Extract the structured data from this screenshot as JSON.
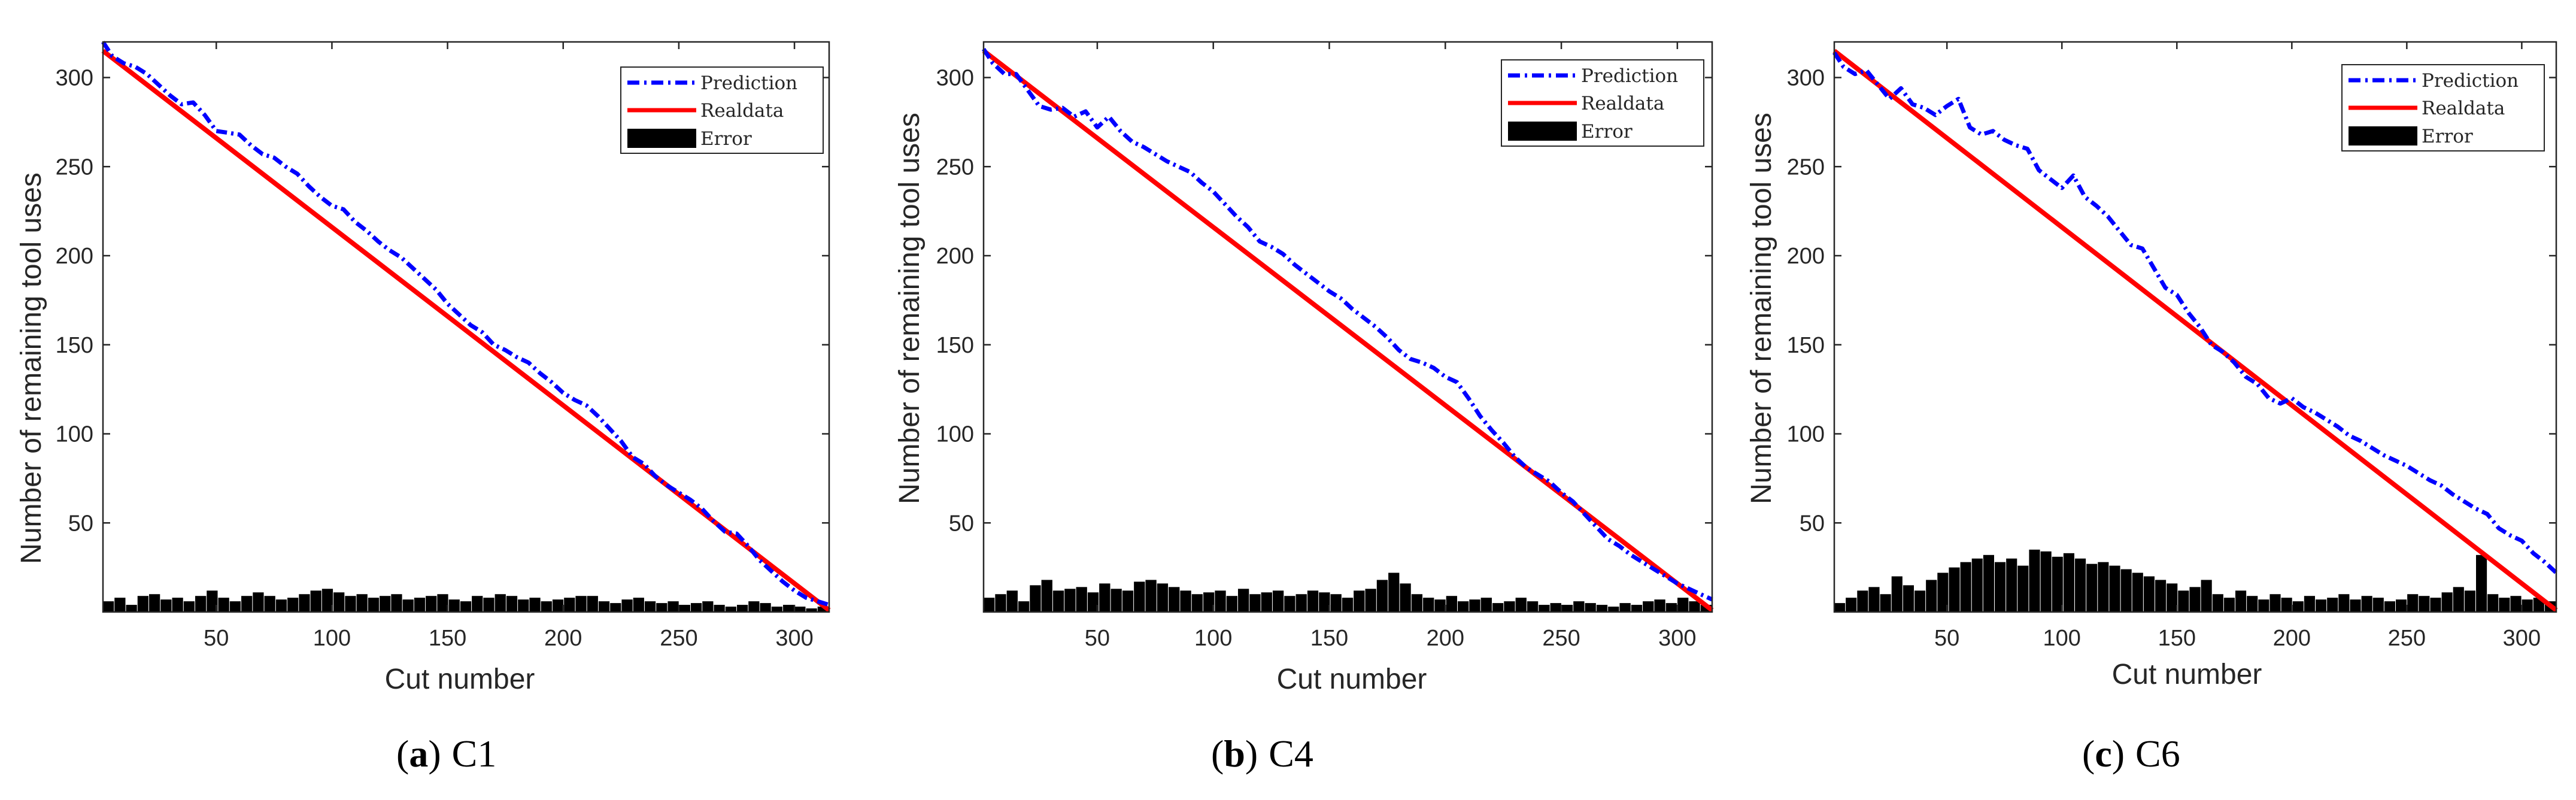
{
  "figure_captions": [
    {
      "letter": "a",
      "name": "C1"
    },
    {
      "letter": "b",
      "name": "C4"
    },
    {
      "letter": "c",
      "name": "C6"
    }
  ],
  "colors": {
    "prediction": "#0000ff",
    "realdata": "#ff0000",
    "error": "#000000",
    "axis": "#262626"
  },
  "chart_data": [
    {
      "id": "C1",
      "type": "line",
      "xlabel": "Cut number",
      "ylabel": "Number of remaining tool uses",
      "xlim": [
        1,
        315
      ],
      "ylim": [
        0,
        320
      ],
      "xticks": [
        50,
        100,
        150,
        200,
        250,
        300
      ],
      "yticks": [
        50,
        100,
        150,
        200,
        250,
        300
      ],
      "legend_location": "top-right",
      "series": [
        {
          "name": "Prediction",
          "style": "dash-dot",
          "x": [
            1,
            5,
            10,
            15,
            20,
            25,
            30,
            35,
            40,
            45,
            50,
            55,
            60,
            65,
            70,
            75,
            80,
            85,
            90,
            95,
            100,
            105,
            110,
            115,
            120,
            125,
            130,
            135,
            140,
            145,
            150,
            155,
            160,
            165,
            170,
            175,
            180,
            185,
            190,
            195,
            200,
            205,
            210,
            215,
            220,
            225,
            230,
            235,
            240,
            245,
            250,
            255,
            260,
            265,
            270,
            275,
            280,
            285,
            290,
            295,
            300,
            305,
            310,
            315
          ],
          "values": [
            320,
            312,
            308,
            306,
            302,
            296,
            290,
            285,
            286,
            279,
            270,
            269,
            268,
            262,
            257,
            255,
            250,
            246,
            239,
            233,
            228,
            226,
            219,
            214,
            208,
            203,
            199,
            193,
            187,
            181,
            173,
            167,
            161,
            157,
            150,
            147,
            143,
            140,
            134,
            129,
            123,
            119,
            116,
            110,
            103,
            96,
            87,
            83,
            76,
            71,
            67,
            63,
            58,
            51,
            45,
            44,
            37,
            29,
            23,
            17,
            12,
            8,
            6,
            4
          ]
        },
        {
          "name": "Realdata",
          "style": "solid",
          "x": [
            1,
            315
          ],
          "values": [
            315,
            1
          ]
        },
        {
          "name": "Error",
          "style": "bar",
          "x_start": 1,
          "x_end": 315,
          "values": [
            6,
            8,
            4,
            9,
            10,
            7,
            8,
            6,
            9,
            12,
            8,
            6,
            9,
            11,
            9,
            7,
            8,
            10,
            12,
            13,
            11,
            9,
            10,
            8,
            9,
            10,
            7,
            8,
            9,
            10,
            7,
            6,
            9,
            8,
            10,
            9,
            7,
            8,
            6,
            7,
            8,
            9,
            9,
            6,
            5,
            7,
            8,
            6,
            5,
            6,
            4,
            5,
            6,
            4,
            3,
            4,
            6,
            5,
            3,
            4,
            3,
            2,
            3
          ]
        }
      ]
    },
    {
      "id": "C4",
      "type": "line",
      "xlabel": "Cut number",
      "ylabel": "Number of remaining tool uses",
      "xlim": [
        1,
        315
      ],
      "ylim": [
        0,
        320
      ],
      "xticks": [
        50,
        100,
        150,
        200,
        250,
        300
      ],
      "yticks": [
        50,
        100,
        150,
        200,
        250,
        300
      ],
      "legend_location": "top-right",
      "series": [
        {
          "name": "Prediction",
          "style": "dash-dot",
          "x": [
            1,
            5,
            10,
            15,
            20,
            25,
            30,
            35,
            40,
            45,
            50,
            55,
            60,
            65,
            70,
            75,
            80,
            85,
            90,
            95,
            100,
            105,
            110,
            115,
            120,
            125,
            130,
            135,
            140,
            145,
            150,
            155,
            160,
            165,
            170,
            175,
            180,
            185,
            190,
            195,
            200,
            205,
            210,
            215,
            220,
            225,
            230,
            235,
            240,
            245,
            250,
            255,
            260,
            265,
            270,
            275,
            280,
            285,
            290,
            295,
            300,
            305,
            310,
            315
          ],
          "values": [
            316,
            308,
            302,
            302,
            293,
            284,
            282,
            283,
            278,
            281,
            272,
            278,
            270,
            264,
            261,
            257,
            253,
            250,
            247,
            241,
            236,
            229,
            222,
            216,
            208,
            205,
            201,
            195,
            190,
            185,
            180,
            176,
            170,
            165,
            160,
            154,
            147,
            142,
            140,
            137,
            132,
            129,
            120,
            110,
            102,
            95,
            87,
            81,
            77,
            73,
            67,
            62,
            55,
            48,
            41,
            37,
            32,
            28,
            24,
            20,
            16,
            13,
            10,
            7
          ]
        },
        {
          "name": "Realdata",
          "style": "solid",
          "x": [
            1,
            315
          ],
          "values": [
            315,
            1
          ]
        },
        {
          "name": "Error",
          "style": "bar",
          "x_start": 1,
          "x_end": 315,
          "values": [
            8,
            10,
            12,
            6,
            15,
            18,
            12,
            13,
            14,
            11,
            16,
            13,
            12,
            17,
            18,
            16,
            14,
            12,
            10,
            11,
            12,
            9,
            13,
            10,
            11,
            12,
            9,
            10,
            12,
            11,
            10,
            8,
            12,
            13,
            18,
            22,
            16,
            10,
            8,
            7,
            9,
            6,
            7,
            8,
            5,
            6,
            8,
            6,
            4,
            5,
            4,
            6,
            5,
            4,
            3,
            5,
            4,
            6,
            7,
            5,
            8,
            6,
            4
          ]
        }
      ]
    },
    {
      "id": "C6",
      "type": "line",
      "xlabel": "Cut number",
      "ylabel": "Number of remaining tool uses",
      "xlim": [
        1,
        315
      ],
      "ylim": [
        0,
        320
      ],
      "xticks": [
        50,
        100,
        150,
        200,
        250,
        300
      ],
      "yticks": [
        50,
        100,
        150,
        200,
        250,
        300
      ],
      "legend_location": "top-right",
      "series": [
        {
          "name": "Prediction",
          "style": "dash-dot",
          "x": [
            1,
            5,
            10,
            15,
            20,
            25,
            30,
            35,
            40,
            45,
            50,
            55,
            60,
            65,
            70,
            75,
            80,
            85,
            90,
            95,
            100,
            105,
            110,
            115,
            120,
            125,
            130,
            135,
            140,
            145,
            150,
            155,
            160,
            165,
            170,
            175,
            180,
            185,
            190,
            195,
            200,
            205,
            210,
            215,
            220,
            225,
            230,
            235,
            240,
            245,
            250,
            255,
            260,
            265,
            270,
            275,
            280,
            285,
            290,
            295,
            300,
            305,
            310,
            315
          ],
          "values": [
            314,
            306,
            302,
            304,
            296,
            288,
            294,
            285,
            283,
            279,
            284,
            288,
            272,
            268,
            270,
            265,
            262,
            260,
            248,
            243,
            238,
            245,
            233,
            228,
            222,
            214,
            206,
            204,
            193,
            182,
            178,
            168,
            160,
            150,
            146,
            140,
            132,
            128,
            120,
            117,
            120,
            115,
            112,
            108,
            104,
            99,
            96,
            92,
            88,
            85,
            82,
            78,
            74,
            71,
            66,
            62,
            58,
            55,
            47,
            43,
            40,
            33,
            28,
            22
          ]
        },
        {
          "name": "Realdata",
          "style": "solid",
          "x": [
            1,
            315
          ],
          "values": [
            315,
            1
          ]
        },
        {
          "name": "Error",
          "style": "bar",
          "x_start": 1,
          "x_end": 315,
          "values": [
            5,
            8,
            12,
            14,
            10,
            20,
            15,
            12,
            18,
            22,
            25,
            28,
            30,
            32,
            28,
            30,
            26,
            35,
            34,
            31,
            33,
            30,
            27,
            28,
            26,
            24,
            22,
            20,
            18,
            16,
            12,
            14,
            18,
            10,
            8,
            12,
            9,
            7,
            10,
            8,
            6,
            9,
            7,
            8,
            10,
            7,
            9,
            8,
            6,
            7,
            10,
            9,
            8,
            11,
            14,
            12,
            32,
            10,
            8,
            9,
            7,
            8,
            6
          ]
        }
      ]
    }
  ]
}
